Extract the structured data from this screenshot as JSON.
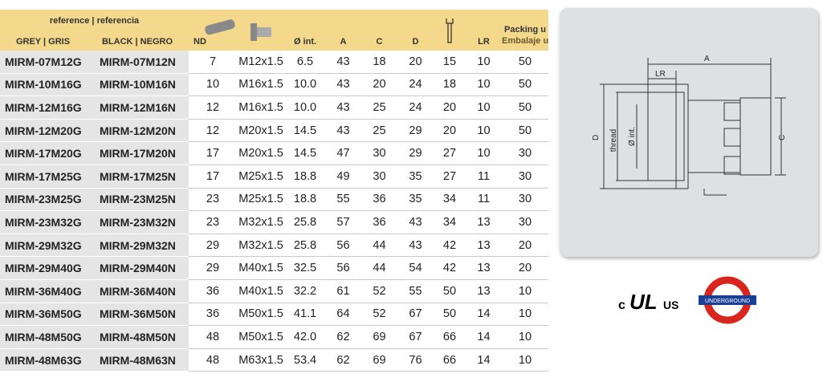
{
  "table": {
    "header": {
      "group": "reference | referencia",
      "grey": "GREY | GRIS",
      "black": "BLACK | NEGRO",
      "nd": "ND",
      "dint": "Ø int.",
      "a": "A",
      "c": "C",
      "d": "D",
      "lr": "LR",
      "packing": "Packing u",
      "packing2": "Embalaje u"
    },
    "rows": [
      [
        "MIRM-07M12G",
        "MIRM-07M12N",
        "7",
        "M12x1.5",
        "6.5",
        "43",
        "18",
        "20",
        "15",
        "10",
        "50"
      ],
      [
        "MIRM-10M16G",
        "MIRM-10M16N",
        "10",
        "M16x1.5",
        "10.0",
        "43",
        "20",
        "24",
        "18",
        "10",
        "50"
      ],
      [
        "MIRM-12M16G",
        "MIRM-12M16N",
        "12",
        "M16x1.5",
        "10.0",
        "43",
        "25",
        "24",
        "20",
        "10",
        "50"
      ],
      [
        "MIRM-12M20G",
        "MIRM-12M20N",
        "12",
        "M20x1.5",
        "14.5",
        "43",
        "25",
        "29",
        "20",
        "10",
        "50"
      ],
      [
        "MIRM-17M20G",
        "MIRM-17M20N",
        "17",
        "M20x1.5",
        "14.5",
        "47",
        "30",
        "29",
        "27",
        "10",
        "30"
      ],
      [
        "MIRM-17M25G",
        "MIRM-17M25N",
        "17",
        "M25x1.5",
        "18.8",
        "49",
        "30",
        "35",
        "27",
        "11",
        "30"
      ],
      [
        "MIRM-23M25G",
        "MIRM-23M25N",
        "23",
        "M25x1.5",
        "18.8",
        "55",
        "36",
        "35",
        "34",
        "11",
        "30"
      ],
      [
        "MIRM-23M32G",
        "MIRM-23M32N",
        "23",
        "M32x1.5",
        "25.8",
        "57",
        "36",
        "43",
        "34",
        "13",
        "30"
      ],
      [
        "MIRM-29M32G",
        "MIRM-29M32N",
        "29",
        "M32x1.5",
        "25.8",
        "56",
        "44",
        "43",
        "42",
        "13",
        "20"
      ],
      [
        "MIRM-29M40G",
        "MIRM-29M40N",
        "29",
        "M40x1.5",
        "32.5",
        "56",
        "44",
        "54",
        "42",
        "13",
        "20"
      ],
      [
        "MIRM-36M40G",
        "MIRM-36M40N",
        "36",
        "M40x1.5",
        "32.2",
        "61",
        "52",
        "55",
        "50",
        "13",
        "10"
      ],
      [
        "MIRM-36M50G",
        "MIRM-36M50N",
        "36",
        "M50x1.5",
        "41.1",
        "64",
        "52",
        "67",
        "50",
        "14",
        "10"
      ],
      [
        "MIRM-48M50G",
        "MIRM-48M50N",
        "48",
        "M50x1.5",
        "42.0",
        "62",
        "69",
        "67",
        "66",
        "14",
        "10"
      ],
      [
        "MIRM-48M63G",
        "MIRM-48M63N",
        "48",
        "M63x1.5",
        "53.4",
        "62",
        "69",
        "76",
        "66",
        "14",
        "10"
      ]
    ]
  },
  "diagram": {
    "a": "A",
    "lr": "LR",
    "d": "D",
    "thread": "thread",
    "dint": "Ø int.",
    "c": "C"
  },
  "logos": {
    "ul_c": "c",
    "ul_us": "US",
    "underground": "UNDERGROUND"
  }
}
